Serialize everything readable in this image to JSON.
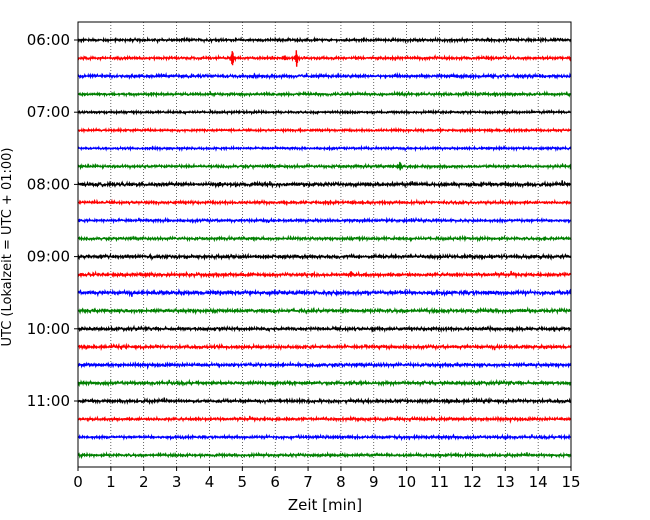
{
  "chart_data": {
    "type": "line",
    "title": "",
    "xlabel": "Zeit  [min]",
    "ylabel": "UTC (Lokalzeit = UTC + 01:00)",
    "xlim": [
      0,
      15
    ],
    "x_ticks": [
      0,
      1,
      2,
      3,
      4,
      5,
      6,
      7,
      8,
      9,
      10,
      11,
      12,
      13,
      14,
      15
    ],
    "y_tick_labels": [
      "06:00",
      "07:00",
      "08:00",
      "09:00",
      "10:00",
      "11:00"
    ],
    "grid": "vertical dotted",
    "trace_colors": [
      "#000000",
      "#ff0000",
      "#0000ff",
      "#008000"
    ],
    "series": [
      {
        "start": "06:00",
        "color": "#000000",
        "amplitude": 0.1,
        "events": []
      },
      {
        "start": "06:15",
        "color": "#ff0000",
        "amplitude": 0.1,
        "events": [
          {
            "minute": 4.7,
            "size": 0.85
          },
          {
            "minute": 6.65,
            "size": 0.75
          },
          {
            "minute": 6.3,
            "size": 0.25
          }
        ]
      },
      {
        "start": "06:30",
        "color": "#0000ff",
        "amplitude": 0.12,
        "events": [
          {
            "minute": 5.3,
            "size": 0.2
          }
        ]
      },
      {
        "start": "06:45",
        "color": "#008000",
        "amplitude": 0.1,
        "events": [
          {
            "minute": 12.7,
            "size": 0.2
          }
        ]
      },
      {
        "start": "07:00",
        "color": "#000000",
        "amplitude": 0.08,
        "events": []
      },
      {
        "start": "07:15",
        "color": "#ff0000",
        "amplitude": 0.08,
        "events": []
      },
      {
        "start": "07:30",
        "color": "#0000ff",
        "amplitude": 0.08,
        "events": []
      },
      {
        "start": "07:45",
        "color": "#008000",
        "amplitude": 0.1,
        "events": [
          {
            "minute": 9.8,
            "size": 0.45
          }
        ]
      },
      {
        "start": "08:00",
        "color": "#000000",
        "amplitude": 0.14,
        "events": [
          {
            "minute": 4.3,
            "size": 0.2
          }
        ]
      },
      {
        "start": "08:15",
        "color": "#ff0000",
        "amplitude": 0.1,
        "events": []
      },
      {
        "start": "08:30",
        "color": "#0000ff",
        "amplitude": 0.1,
        "events": []
      },
      {
        "start": "08:45",
        "color": "#008000",
        "amplitude": 0.1,
        "events": [
          {
            "minute": 14.2,
            "size": 0.2
          }
        ]
      },
      {
        "start": "09:00",
        "color": "#000000",
        "amplitude": 0.13,
        "events": []
      },
      {
        "start": "09:15",
        "color": "#ff0000",
        "amplitude": 0.13,
        "events": [
          {
            "minute": 8.3,
            "size": 0.3
          }
        ]
      },
      {
        "start": "09:30",
        "color": "#0000ff",
        "amplitude": 0.15,
        "events": []
      },
      {
        "start": "09:45",
        "color": "#008000",
        "amplitude": 0.13,
        "events": []
      },
      {
        "start": "10:00",
        "color": "#000000",
        "amplitude": 0.12,
        "events": []
      },
      {
        "start": "10:15",
        "color": "#ff0000",
        "amplitude": 0.12,
        "events": []
      },
      {
        "start": "10:30",
        "color": "#0000ff",
        "amplitude": 0.12,
        "events": []
      },
      {
        "start": "10:45",
        "color": "#008000",
        "amplitude": 0.12,
        "events": []
      },
      {
        "start": "11:00",
        "color": "#000000",
        "amplitude": 0.12,
        "events": []
      },
      {
        "start": "11:15",
        "color": "#ff0000",
        "amplitude": 0.11,
        "events": []
      },
      {
        "start": "11:30",
        "color": "#0000ff",
        "amplitude": 0.1,
        "events": []
      },
      {
        "start": "11:45",
        "color": "#008000",
        "amplitude": 0.1,
        "events": []
      }
    ]
  }
}
